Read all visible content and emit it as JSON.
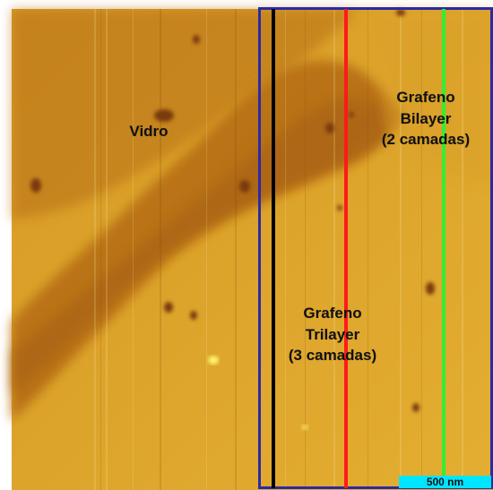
{
  "labels": {
    "glass": "Vidro",
    "bilayer": [
      "Grafeno",
      "Bilayer",
      "(2 camadas)"
    ],
    "trilayer": [
      "Grafeno",
      "Trilayer",
      "(3 camadas)"
    ]
  },
  "scale_bar": {
    "text": "500 nm",
    "color": "#00e5ff"
  },
  "colors": {
    "selection_box": "#2a2aa8",
    "line_1": "#000000",
    "line_2": "#ff1a1a",
    "line_3": "#33ee33",
    "glass_region": "#b66e17",
    "graphene_region": "#e0a92a"
  }
}
